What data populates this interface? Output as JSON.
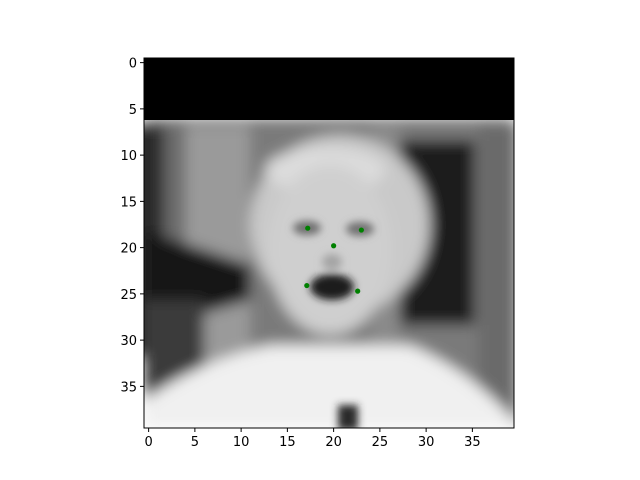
{
  "chart_data": {
    "type": "scatter",
    "title": "",
    "xlabel": "",
    "ylabel": "",
    "xlim": [
      -0.5,
      39.5
    ],
    "ylim": [
      39.5,
      -0.5
    ],
    "y_inverted": true,
    "image_background": "grayscale face photo (40x40 px) with black band at top rows 0-6",
    "x_ticks": [
      0,
      5,
      10,
      15,
      20,
      25,
      30,
      35
    ],
    "x_tick_labels": [
      "0",
      "5",
      "10",
      "15",
      "20",
      "25",
      "30",
      "35"
    ],
    "y_ticks": [
      0,
      5,
      10,
      15,
      20,
      25,
      30,
      35
    ],
    "y_tick_labels": [
      "0",
      "5",
      "10",
      "15",
      "20",
      "25",
      "30",
      "35"
    ],
    "grid": false,
    "marker_color": "#008000",
    "points": [
      {
        "x": 17.2,
        "y": 17.9
      },
      {
        "x": 23.0,
        "y": 18.1
      },
      {
        "x": 20.0,
        "y": 19.8
      },
      {
        "x": 17.1,
        "y": 24.1
      },
      {
        "x": 22.6,
        "y": 24.7
      }
    ]
  }
}
